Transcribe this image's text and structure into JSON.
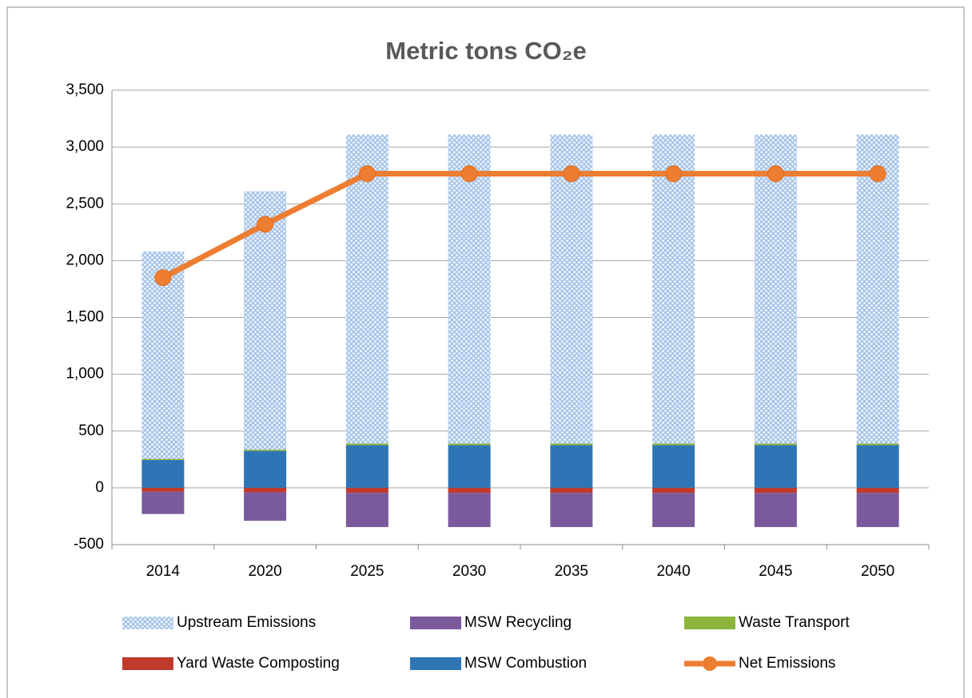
{
  "chart_data": {
    "type": "bar",
    "stacked": true,
    "title": "Metric tons CO₂e",
    "categories": [
      "2014",
      "2020",
      "2025",
      "2030",
      "2035",
      "2040",
      "2045",
      "2050"
    ],
    "series": [
      {
        "name": "MSW Combustion",
        "color": "#2e75b6",
        "values": [
          245,
          325,
          375,
          375,
          375,
          375,
          375,
          375
        ]
      },
      {
        "name": "Waste Transport",
        "color": "#8db53c",
        "values": [
          10,
          12,
          15,
          15,
          15,
          15,
          15,
          15
        ]
      },
      {
        "name": "Upstream Emissions",
        "color": "#c6d9f1",
        "pattern": "dots",
        "values": [
          1825,
          2273,
          2720,
          2720,
          2720,
          2720,
          2720,
          2720
        ]
      },
      {
        "name": "Yard Waste Composting",
        "color": "#c0392b",
        "values": [
          -35,
          -40,
          -45,
          -45,
          -45,
          -45,
          -45,
          -45
        ]
      },
      {
        "name": "MSW Recycling",
        "color": "#7a5a9c",
        "values": [
          -195,
          -250,
          -300,
          -300,
          -300,
          -300,
          -300,
          -300
        ]
      },
      {
        "name": "Net Emissions",
        "type": "line",
        "color": "#ed7d31",
        "values": [
          1850,
          2320,
          2765,
          2765,
          2765,
          2765,
          2765,
          2765
        ]
      }
    ],
    "ylim": [
      -500,
      3500
    ],
    "yticks": [
      -500,
      0,
      500,
      {
        "value": 1000,
        "label": "1,000"
      },
      {
        "value": 1500,
        "label": "1,500"
      },
      {
        "value": 2000,
        "label": "2,000"
      },
      {
        "value": 2500,
        "label": "2,500"
      },
      {
        "value": 3000,
        "label": "3,000"
      },
      {
        "value": 3500,
        "label": "3,500"
      }
    ],
    "grid": true,
    "legend": "bottom"
  }
}
